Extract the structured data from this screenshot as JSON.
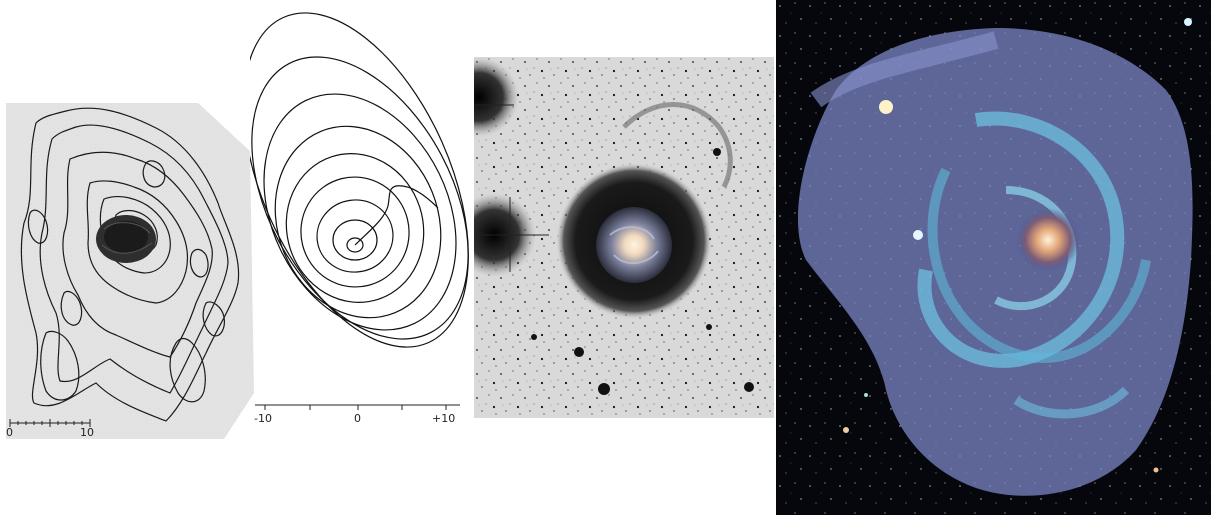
{
  "panels": [
    {
      "id": "contour-map",
      "scalebar": {
        "start": "0",
        "end": "10"
      }
    },
    {
      "id": "tilted-ring-diagram",
      "axis_ticks": [
        "-10",
        "0",
        "+10"
      ]
    },
    {
      "id": "deep-optical-image"
    },
    {
      "id": "color-composite-image"
    }
  ],
  "colors": {
    "page_background": "#ffffff",
    "plate_background": "#e6e6e6",
    "contour_line": "#1a1a1a",
    "sky_dark": "#05070d",
    "hi_disk": "#7b87c6",
    "hi_arms": "#6fc6e6",
    "galaxy_core": "#f3c7a0"
  }
}
